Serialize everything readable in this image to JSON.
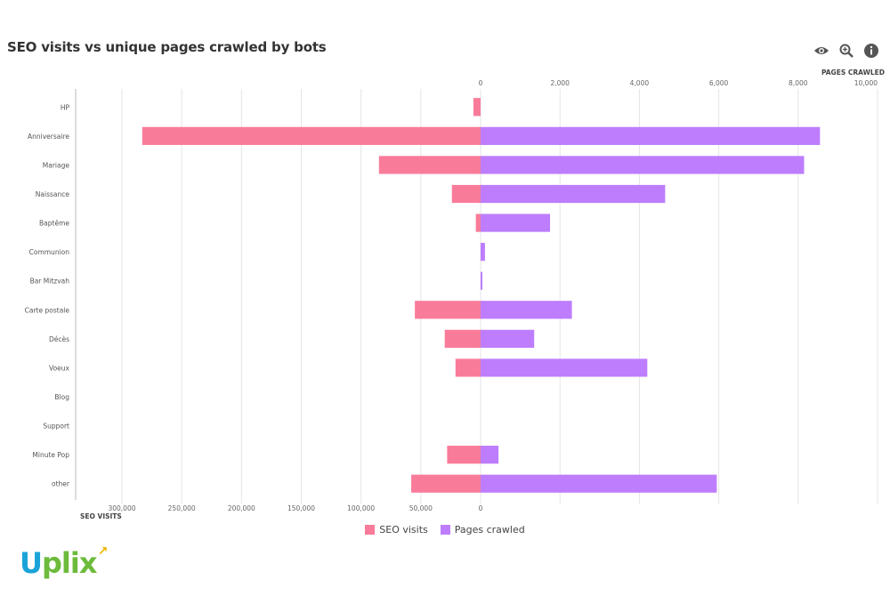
{
  "title": "SEO visits vs unique pages crawled by bots",
  "toolbar": {
    "icons": [
      "eye-icon",
      "zoom-icon",
      "info-icon"
    ]
  },
  "colors": {
    "seo": "#f97b9a",
    "pages": "#bd7dfd",
    "grid": "#e5e5e5",
    "axis": "#999999"
  },
  "legend": {
    "seo_label": "SEO visits",
    "pages_label": "Pages crawled"
  },
  "logo": {
    "text": "Uplix"
  },
  "chart_data": {
    "type": "bar",
    "orientation": "horizontal-diverging",
    "categories": [
      "HP",
      "Anniversaire",
      "Mariage",
      "Naissance",
      "Baptême",
      "Communion",
      "Bar Mitzvah",
      "Carte postale",
      "Décès",
      "Voeux",
      "Blog",
      "Support",
      "Minute Pop",
      "other"
    ],
    "series": [
      {
        "name": "SEO visits",
        "axis": "left",
        "values": [
          6000,
          283000,
          85000,
          24000,
          4000,
          0,
          0,
          55000,
          30000,
          21000,
          0,
          0,
          28000,
          58000
        ]
      },
      {
        "name": "Pages crawled",
        "axis": "right",
        "values": [
          0,
          8550,
          8150,
          4650,
          1750,
          110,
          40,
          2300,
          1350,
          4200,
          0,
          0,
          450,
          5950
        ]
      }
    ],
    "left_axis": {
      "label": "SEO VISITS",
      "range": [
        0,
        300000
      ],
      "ticks": [
        0,
        50000,
        100000,
        150000,
        200000,
        250000,
        300000
      ],
      "tick_labels": [
        "0",
        "50,000",
        "100,000",
        "150,000",
        "200,000",
        "250,000",
        "300,000"
      ]
    },
    "right_axis": {
      "label": "PAGES CRAWLED",
      "range": [
        0,
        10000
      ],
      "ticks": [
        0,
        2000,
        4000,
        6000,
        8000,
        10000
      ],
      "tick_labels": [
        "0",
        "2,000",
        "4,000",
        "6,000",
        "8,000",
        "10,000"
      ]
    },
    "grid": true,
    "legend_position": "bottom"
  }
}
